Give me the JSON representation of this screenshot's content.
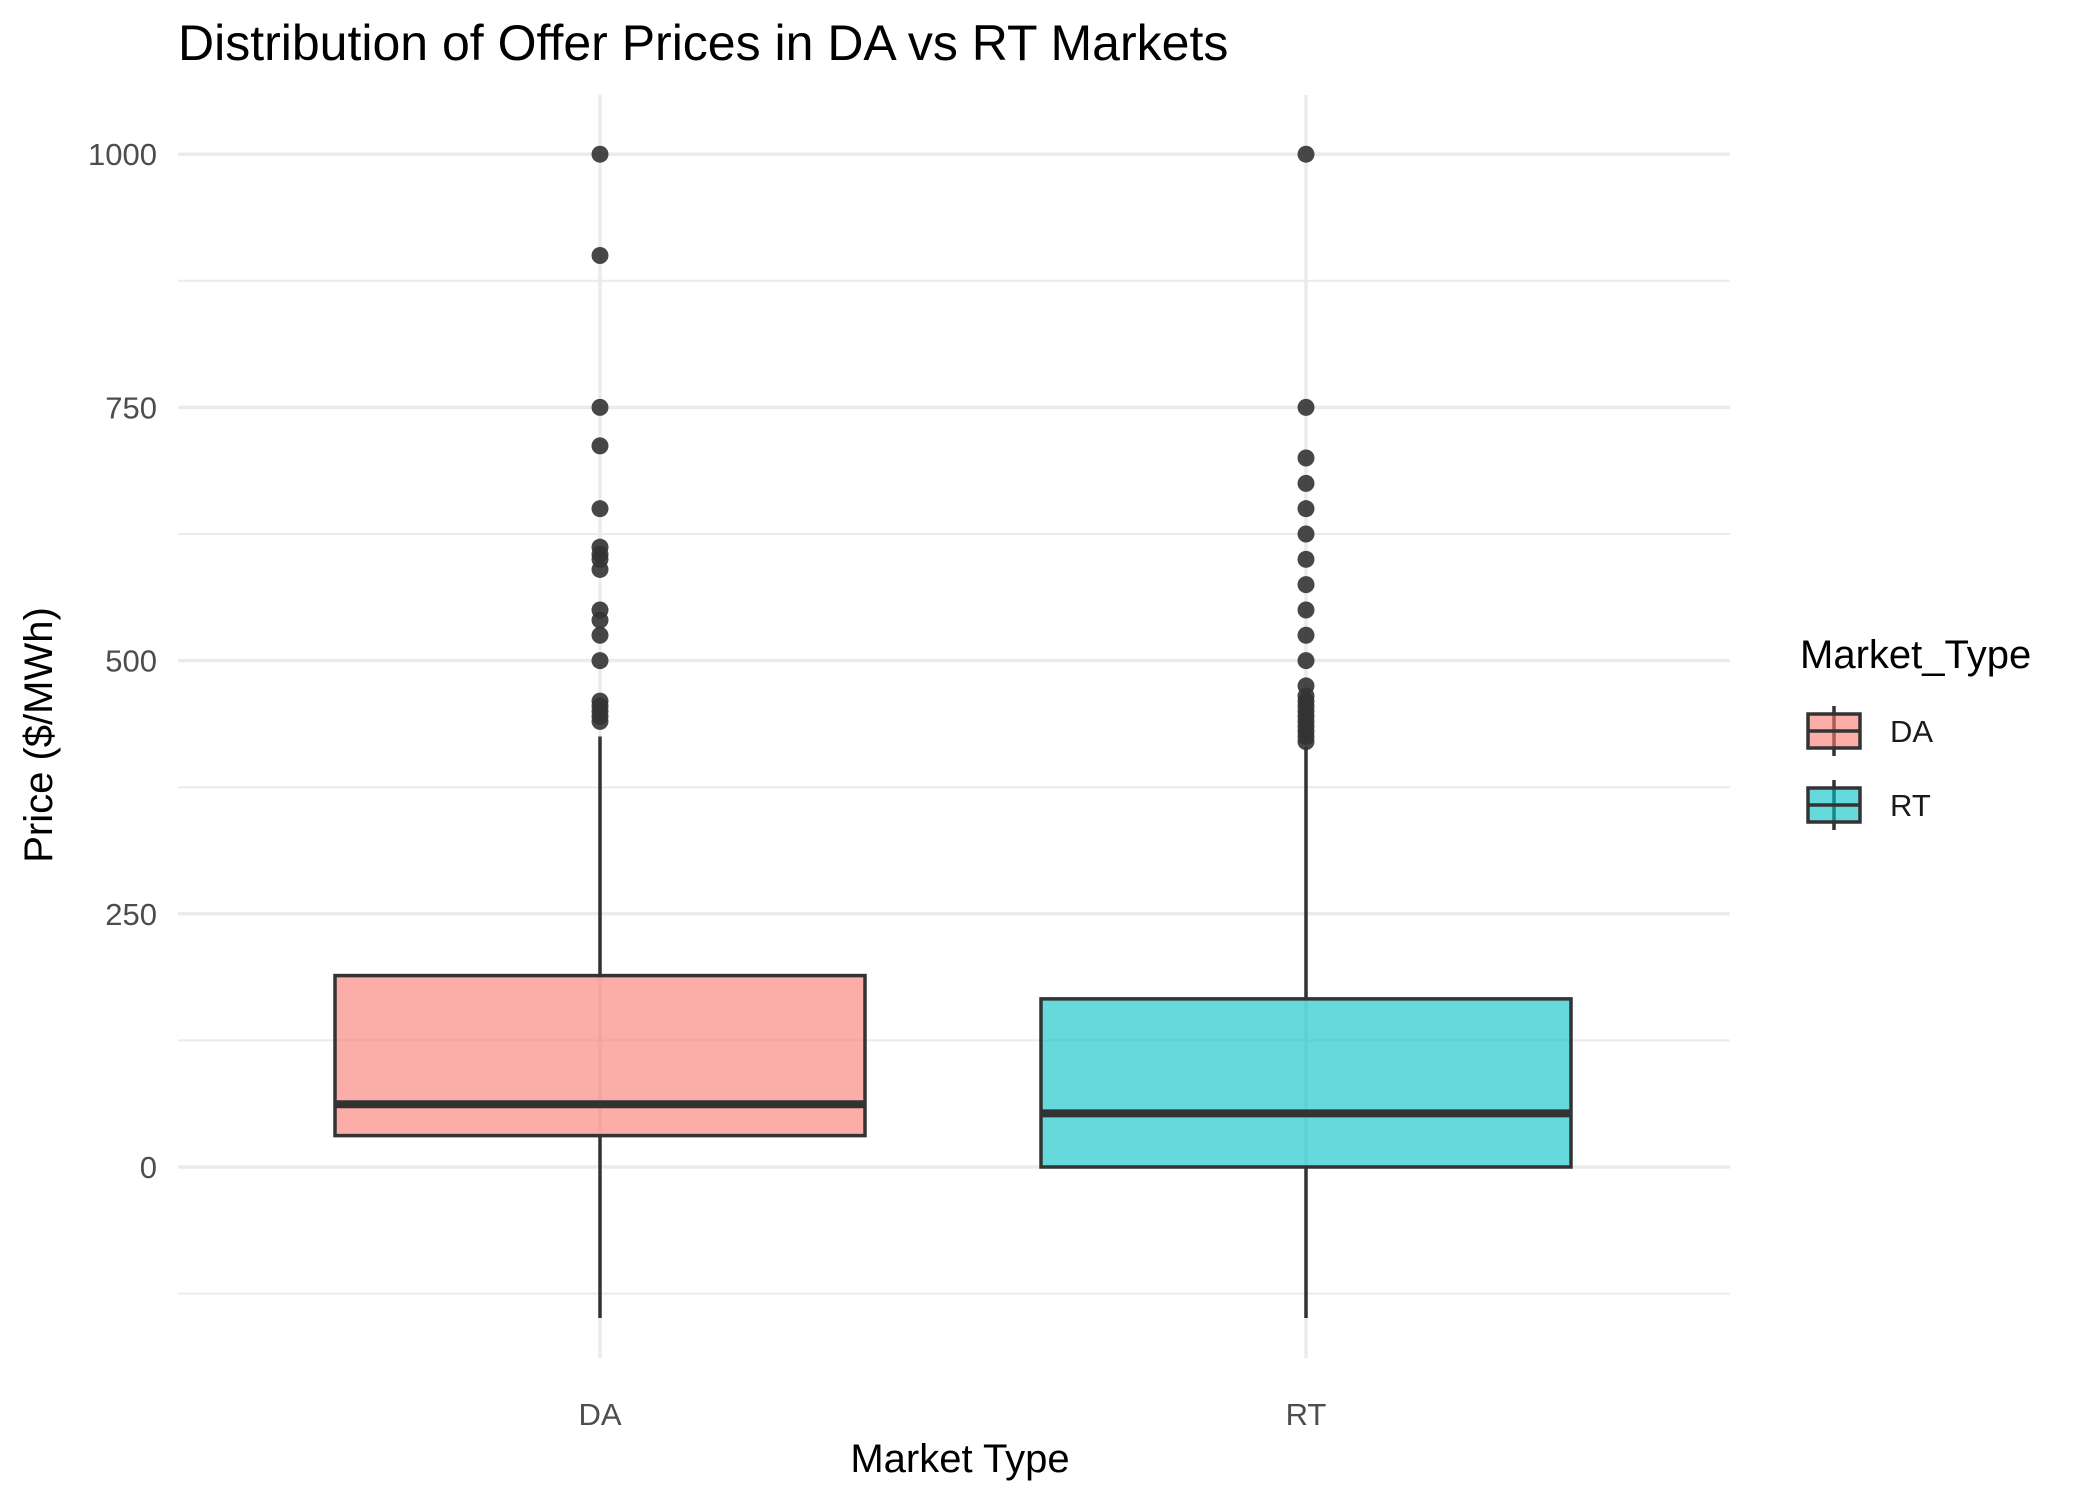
{
  "chart_data": {
    "type": "boxplot",
    "title": "Distribution of Offer Prices in DA vs RT Markets",
    "xlabel": "Market Type",
    "ylabel": "Price ($/MWh)",
    "ylim": [
      -150,
      1050
    ],
    "yticks": [
      0,
      250,
      500,
      750,
      1000
    ],
    "grid": true,
    "legend": {
      "title": "Market_Type",
      "position": "right",
      "entries": [
        "DA",
        "RT"
      ]
    },
    "categories": [
      "DA",
      "RT"
    ],
    "series": [
      {
        "name": "DA",
        "color": "#F8766D",
        "whisker_low": -150,
        "q1": 31,
        "median": 62,
        "q3": 189,
        "whisker_high": 425,
        "outliers": [
          440,
          445,
          450,
          455,
          460,
          500,
          525,
          540,
          550,
          590,
          600,
          605,
          612,
          650,
          712,
          750,
          900,
          1000
        ]
      },
      {
        "name": "RT",
        "color": "#00BFC4",
        "whisker_low": -150,
        "q1": 0,
        "median": 53,
        "q3": 166,
        "whisker_high": 415,
        "outliers": [
          420,
          425,
          430,
          435,
          440,
          445,
          450,
          455,
          460,
          465,
          475,
          500,
          525,
          550,
          575,
          600,
          625,
          650,
          675,
          700,
          750,
          1000
        ]
      }
    ]
  }
}
